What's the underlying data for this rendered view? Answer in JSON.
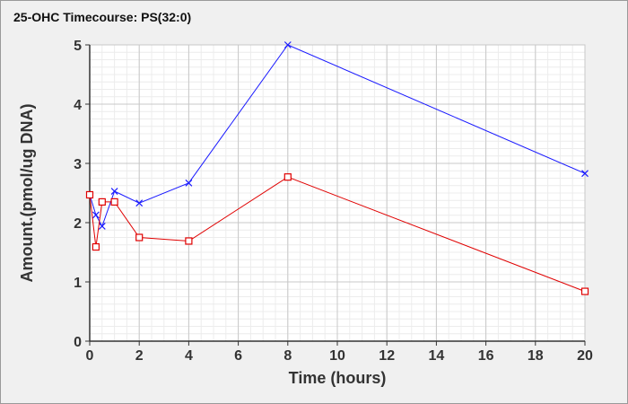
{
  "chart_data": {
    "type": "line",
    "title": "25-OHC Timecourse: PS(32:0)",
    "xlabel": "Time (hours)",
    "ylabel": "Amount.(pmol/ug DNA)",
    "xlim": [
      0,
      20
    ],
    "ylim": [
      0,
      5
    ],
    "xticks": [
      "0",
      "2",
      "4",
      "6",
      "8",
      "10",
      "12",
      "14",
      "16",
      "18",
      "20"
    ],
    "yticks": [
      "0",
      "1",
      "2",
      "3",
      "4",
      "5"
    ],
    "grid": true,
    "series": [
      {
        "color": "#1a1aff",
        "marker": "x",
        "x": [
          0,
          0.25,
          0.5,
          1,
          2,
          4,
          8,
          20
        ],
        "y": [
          2.47,
          2.13,
          1.94,
          2.53,
          2.33,
          2.67,
          5.0,
          2.83
        ]
      },
      {
        "color": "#e00000",
        "marker": "square",
        "x": [
          0,
          0.25,
          0.5,
          1,
          2,
          4,
          8,
          20
        ],
        "y": [
          2.47,
          1.59,
          2.35,
          2.35,
          1.75,
          1.69,
          2.77,
          0.84
        ]
      }
    ]
  }
}
